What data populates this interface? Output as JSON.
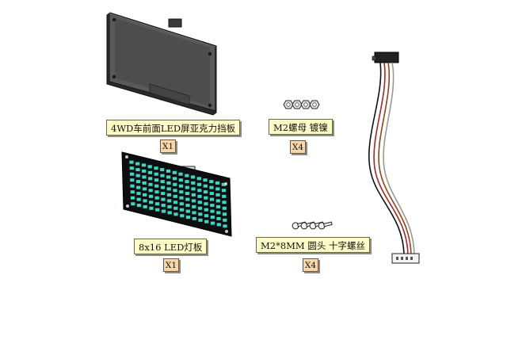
{
  "parts": {
    "acrylic_plate": {
      "label": "4WD车前面LED屏亚克力挡板",
      "qty": "X1"
    },
    "m2_nut": {
      "label": "M2螺母 镀镍",
      "qty": "X4"
    },
    "led_board": {
      "label": "8x16  LED灯板",
      "qty": "X1"
    },
    "m2_screw": {
      "label": "M2*8MM 圆头 十字螺丝",
      "qty": "X4"
    }
  },
  "colors": {
    "label_bg": "#fdfcc6",
    "qty_bg": "#f7d7a8",
    "plate": "#4d4d4d",
    "led": "#3fd6c6",
    "pcb": "#0c0f10"
  },
  "icons": [
    "acrylic-plate-icon",
    "nut-icon",
    "led-matrix-icon",
    "screw-icon",
    "cable-icon"
  ]
}
